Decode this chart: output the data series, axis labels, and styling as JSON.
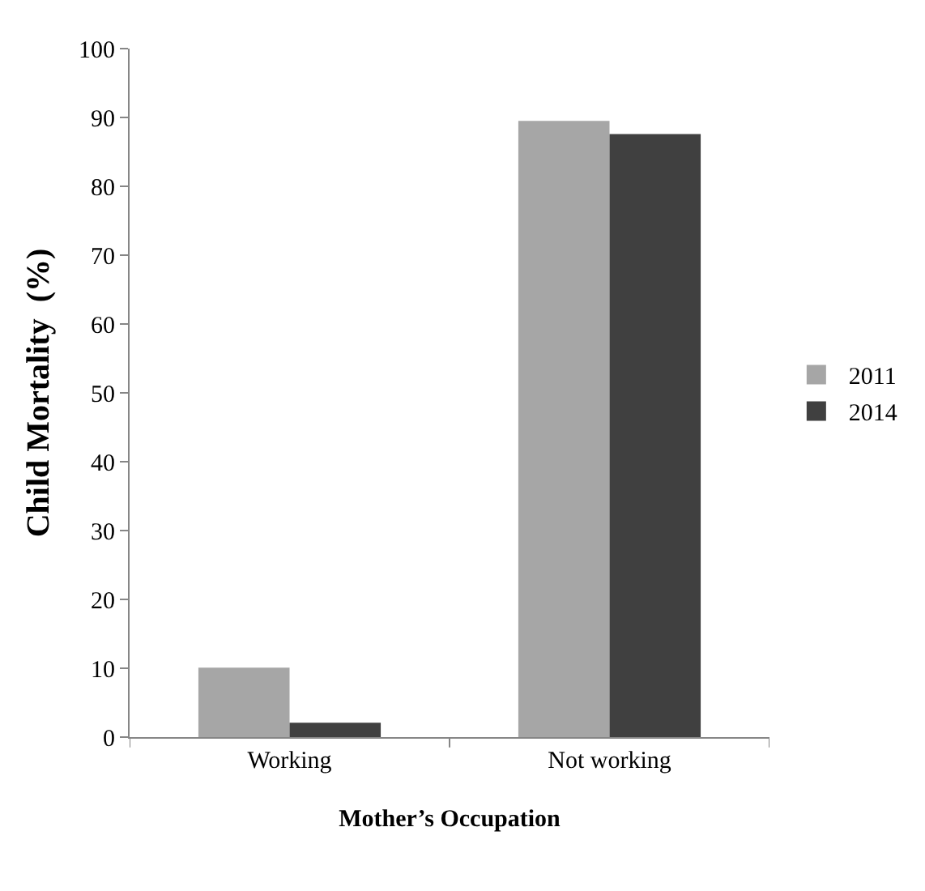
{
  "chart_data": {
    "type": "bar",
    "xlabel": "Mother’s Occupation",
    "ylabel": "Child Mortality  (%)",
    "categories": [
      "Working",
      "Not working"
    ],
    "series": [
      {
        "name": "2011",
        "color": "#a6a6a6",
        "values": [
          10.1,
          89.5
        ]
      },
      {
        "name": "2014",
        "color": "#404040",
        "values": [
          2.1,
          87.6
        ]
      }
    ],
    "ylim": [
      0,
      100
    ],
    "yticks": [
      0,
      10,
      20,
      30,
      40,
      50,
      60,
      70,
      80,
      90,
      100
    ],
    "legend": "right"
  }
}
